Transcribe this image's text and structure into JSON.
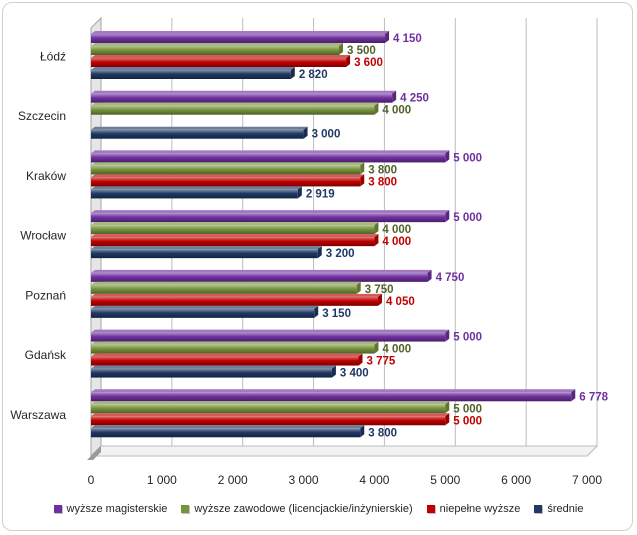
{
  "chart_data": {
    "type": "bar",
    "orientation": "horizontal",
    "categories": [
      "Łódź",
      "Szczecin",
      "Kraków",
      "Wrocław",
      "Poznań",
      "Gdańsk",
      "Warszawa"
    ],
    "series": [
      {
        "name": "wyższe magisterskie",
        "color": "#7030a0",
        "values": [
          4150,
          4250,
          5000,
          5000,
          4750,
          5000,
          6778
        ],
        "labels": [
          "4 150",
          "4 250",
          "5 000",
          "5 000",
          "4 750",
          "5 000",
          "6 778"
        ]
      },
      {
        "name": "wyższe zawodowe (licencjackie/inżynierskie)",
        "color": "#77933c",
        "values": [
          3500,
          4000,
          3800,
          4000,
          3750,
          4000,
          5000
        ],
        "labels": [
          "3 500",
          "4 000",
          "3 800",
          "4 000",
          "3 750",
          "4 000",
          "5 000"
        ]
      },
      {
        "name": "niepełne wyższe",
        "color": "#c00000",
        "values": [
          3600,
          null,
          3800,
          4000,
          4050,
          3775,
          5000
        ],
        "labels": [
          "3 600",
          "",
          "3 800",
          "4 000",
          "4 050",
          "3 775",
          "5 000"
        ]
      },
      {
        "name": "średnie",
        "color": "#1f3864",
        "values": [
          2820,
          3000,
          2919,
          3200,
          3150,
          3400,
          3800
        ],
        "labels": [
          "2 820",
          "3 000",
          "2 919",
          "3 200",
          "3 150",
          "3 400",
          "3 800"
        ]
      }
    ],
    "xlim": [
      0,
      7000
    ],
    "xticks": [
      0,
      1000,
      2000,
      3000,
      4000,
      5000,
      6000,
      7000
    ],
    "xtick_labels": [
      "0",
      "1 000",
      "2 000",
      "3 000",
      "4 000",
      "5 000",
      "6 000",
      "7 000"
    ],
    "grid": true,
    "legend_position": "bottom"
  }
}
